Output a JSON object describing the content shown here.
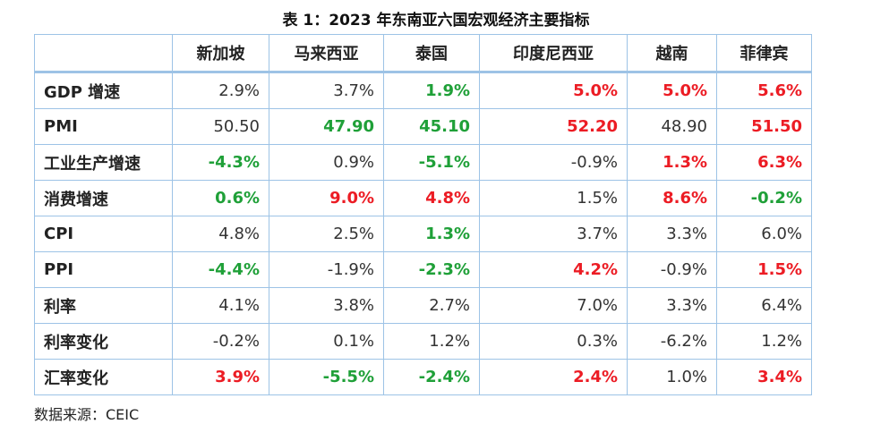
{
  "title": "表 1：2023 年东南亚六国宏观经济主要指标",
  "table": {
    "columns": [
      "新加坡",
      "马来西亚",
      "泰国",
      "印度尼西亚",
      "越南",
      "菲律宾"
    ],
    "rows": [
      {
        "label": "GDP 增速",
        "cells": [
          "2.9%",
          "3.7%",
          "1.9%",
          "5.0%",
          "5.0%",
          "5.6%"
        ],
        "colors": [
          "black",
          "black",
          "green",
          "red",
          "red",
          "red"
        ]
      },
      {
        "label": "PMI",
        "cells": [
          "50.50",
          "47.90",
          "45.10",
          "52.20",
          "48.90",
          "51.50"
        ],
        "colors": [
          "black",
          "green",
          "green",
          "red",
          "black",
          "red"
        ]
      },
      {
        "label": "工业生产增速",
        "cells": [
          "-4.3%",
          "0.9%",
          "-5.1%",
          "-0.9%",
          "1.3%",
          "6.3%"
        ],
        "colors": [
          "green",
          "black",
          "green",
          "black",
          "red",
          "red"
        ]
      },
      {
        "label": "消费增速",
        "cells": [
          "0.6%",
          "9.0%",
          "4.8%",
          "1.5%",
          "8.6%",
          "-0.2%"
        ],
        "colors": [
          "green",
          "red",
          "red",
          "black",
          "red",
          "green"
        ]
      },
      {
        "label": "CPI",
        "cells": [
          "4.8%",
          "2.5%",
          "1.3%",
          "3.7%",
          "3.3%",
          "6.0%"
        ],
        "colors": [
          "black",
          "black",
          "green",
          "black",
          "black",
          "black"
        ]
      },
      {
        "label": "PPI",
        "cells": [
          "-4.4%",
          "-1.9%",
          "-2.3%",
          "4.2%",
          "-0.9%",
          "1.5%"
        ],
        "colors": [
          "green",
          "black",
          "green",
          "red",
          "black",
          "red"
        ]
      },
      {
        "label": "利率",
        "cells": [
          "4.1%",
          "3.8%",
          "2.7%",
          "7.0%",
          "3.3%",
          "6.4%"
        ],
        "colors": [
          "black",
          "black",
          "black",
          "black",
          "black",
          "black"
        ]
      },
      {
        "label": "利率变化",
        "cells": [
          "-0.2%",
          "0.1%",
          "1.2%",
          "0.3%",
          "-6.2%",
          "1.2%"
        ],
        "colors": [
          "black",
          "black",
          "black",
          "black",
          "black",
          "black"
        ]
      },
      {
        "label": "汇率变化",
        "cells": [
          "3.9%",
          "-5.5%",
          "-2.4%",
          "2.4%",
          "1.0%",
          "3.4%"
        ],
        "colors": [
          "red",
          "green",
          "green",
          "red",
          "black",
          "red"
        ]
      }
    ]
  },
  "source": "数据来源：CEIC"
}
